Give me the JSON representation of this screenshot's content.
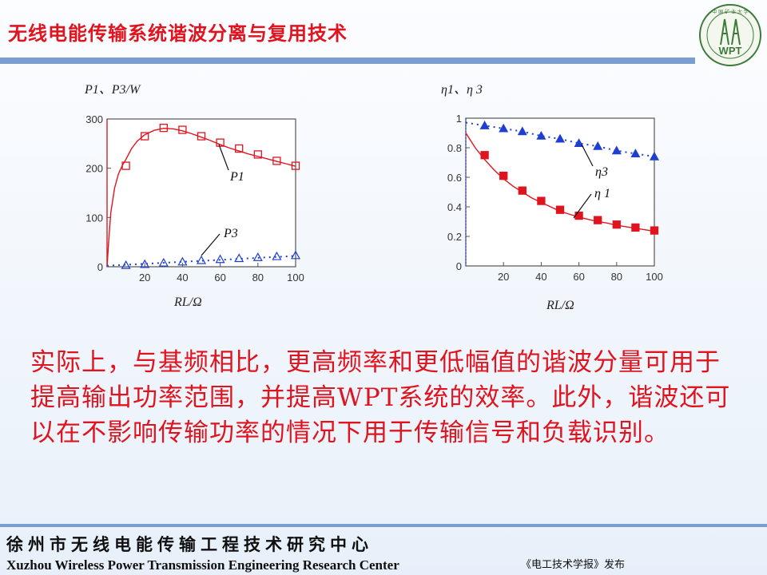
{
  "header": {
    "title": "无线电能传输系统谐波分离与复用技术"
  },
  "logo": {
    "top_text": "中 国 矿 业 大 学",
    "center_text": "WPT",
    "icon": "wpt-tower-logo"
  },
  "chart_data": [
    {
      "type": "line",
      "ylabel": "P1、P3/W",
      "xlabel": "RL/Ω",
      "xlim": [
        0,
        100
      ],
      "ylim": [
        0,
        300
      ],
      "xticks": [
        "20",
        "40",
        "60",
        "80",
        "100"
      ],
      "yticks": [
        "0",
        "100",
        "200",
        "300"
      ],
      "series": [
        {
          "name": "P1",
          "style": "solid",
          "marker": "open-square",
          "color": "#e0141e",
          "curve_x": [
            0,
            1,
            2,
            4,
            6,
            8,
            10,
            13,
            16,
            20,
            25,
            30,
            35,
            40,
            45,
            50,
            55,
            60,
            65,
            70,
            75,
            80,
            85,
            90,
            95,
            100
          ],
          "curve_y": [
            0,
            60,
            110,
            160,
            188,
            205,
            218,
            240,
            255,
            268,
            277,
            281,
            280,
            276,
            270,
            263,
            256,
            248,
            241,
            235,
            229,
            224,
            219,
            214,
            209,
            204
          ],
          "marker_x": [
            10,
            20,
            30,
            40,
            50,
            60,
            70,
            80,
            90,
            100
          ],
          "marker_y": [
            205,
            265,
            282,
            278,
            265,
            252,
            240,
            228,
            215,
            205
          ]
        },
        {
          "name": "P3",
          "style": "dotted",
          "marker": "open-triangle",
          "color": "#1f3fd1",
          "curve_x": [
            0,
            5,
            10,
            20,
            30,
            40,
            50,
            60,
            70,
            80,
            90,
            100
          ],
          "curve_y": [
            2,
            3,
            4,
            6,
            8,
            10,
            12,
            14,
            16,
            18,
            20,
            22
          ],
          "marker_x": [
            10,
            20,
            30,
            40,
            50,
            60,
            70,
            80,
            90,
            100
          ],
          "marker_y": [
            3,
            5,
            8,
            10,
            13,
            15,
            17,
            19,
            21,
            23
          ]
        }
      ],
      "annotations": [
        {
          "text": "P1",
          "series": "P1"
        },
        {
          "text": "P3",
          "series": "P3"
        }
      ]
    },
    {
      "type": "line",
      "ylabel": "η1、η 3",
      "xlabel": "RL/Ω",
      "xlim": [
        0,
        100
      ],
      "ylim": [
        0,
        1
      ],
      "xticks": [
        "20",
        "40",
        "60",
        "80",
        "100"
      ],
      "yticks": [
        "0",
        "0.2",
        "0.4",
        "0.6",
        "0.8",
        "1"
      ],
      "series": [
        {
          "name": "η1",
          "style": "solid",
          "marker": "filled-square",
          "color": "#e0141e",
          "curve_x": [
            0,
            2,
            5,
            10,
            15,
            20,
            25,
            30,
            35,
            40,
            45,
            50,
            55,
            60,
            65,
            70,
            75,
            80,
            85,
            90,
            95,
            100
          ],
          "curve_y": [
            0.9,
            0.86,
            0.8,
            0.72,
            0.65,
            0.59,
            0.54,
            0.5,
            0.46,
            0.43,
            0.4,
            0.37,
            0.35,
            0.33,
            0.315,
            0.3,
            0.29,
            0.275,
            0.265,
            0.255,
            0.245,
            0.235
          ],
          "marker_x": [
            10,
            20,
            30,
            40,
            50,
            60,
            70,
            80,
            90,
            100
          ],
          "marker_y": [
            0.75,
            0.61,
            0.51,
            0.44,
            0.38,
            0.34,
            0.31,
            0.28,
            0.26,
            0.24
          ]
        },
        {
          "name": "η3",
          "style": "dotted",
          "marker": "filled-triangle",
          "color": "#1f3fd1",
          "curve_x": [
            0,
            10,
            20,
            30,
            40,
            50,
            60,
            70,
            80,
            90,
            100
          ],
          "curve_y": [
            0.97,
            0.95,
            0.93,
            0.91,
            0.88,
            0.86,
            0.83,
            0.81,
            0.78,
            0.76,
            0.74
          ],
          "marker_x": [
            10,
            20,
            30,
            40,
            50,
            60,
            70,
            80,
            90,
            100
          ],
          "marker_y": [
            0.95,
            0.93,
            0.91,
            0.88,
            0.86,
            0.83,
            0.81,
            0.78,
            0.76,
            0.74
          ]
        }
      ],
      "annotations": [
        {
          "text": "η3",
          "series": "η3"
        },
        {
          "text": "η 1",
          "series": "η1"
        }
      ]
    }
  ],
  "body": {
    "paragraph": "实际上，与基频相比，更高频率和更低幅值的谐波分量可用于提高输出功率范围，并提高WPT系统的效率。此外，谐波还可以在不影响传输功率的情况下用于传输信号和负载识别。"
  },
  "footer": {
    "cn": "徐州市无线电能传输工程技术研究中心",
    "en": "Xuzhou Wireless Power Transmission Engineering Research Center",
    "source": "《电工技术学报》发布"
  }
}
